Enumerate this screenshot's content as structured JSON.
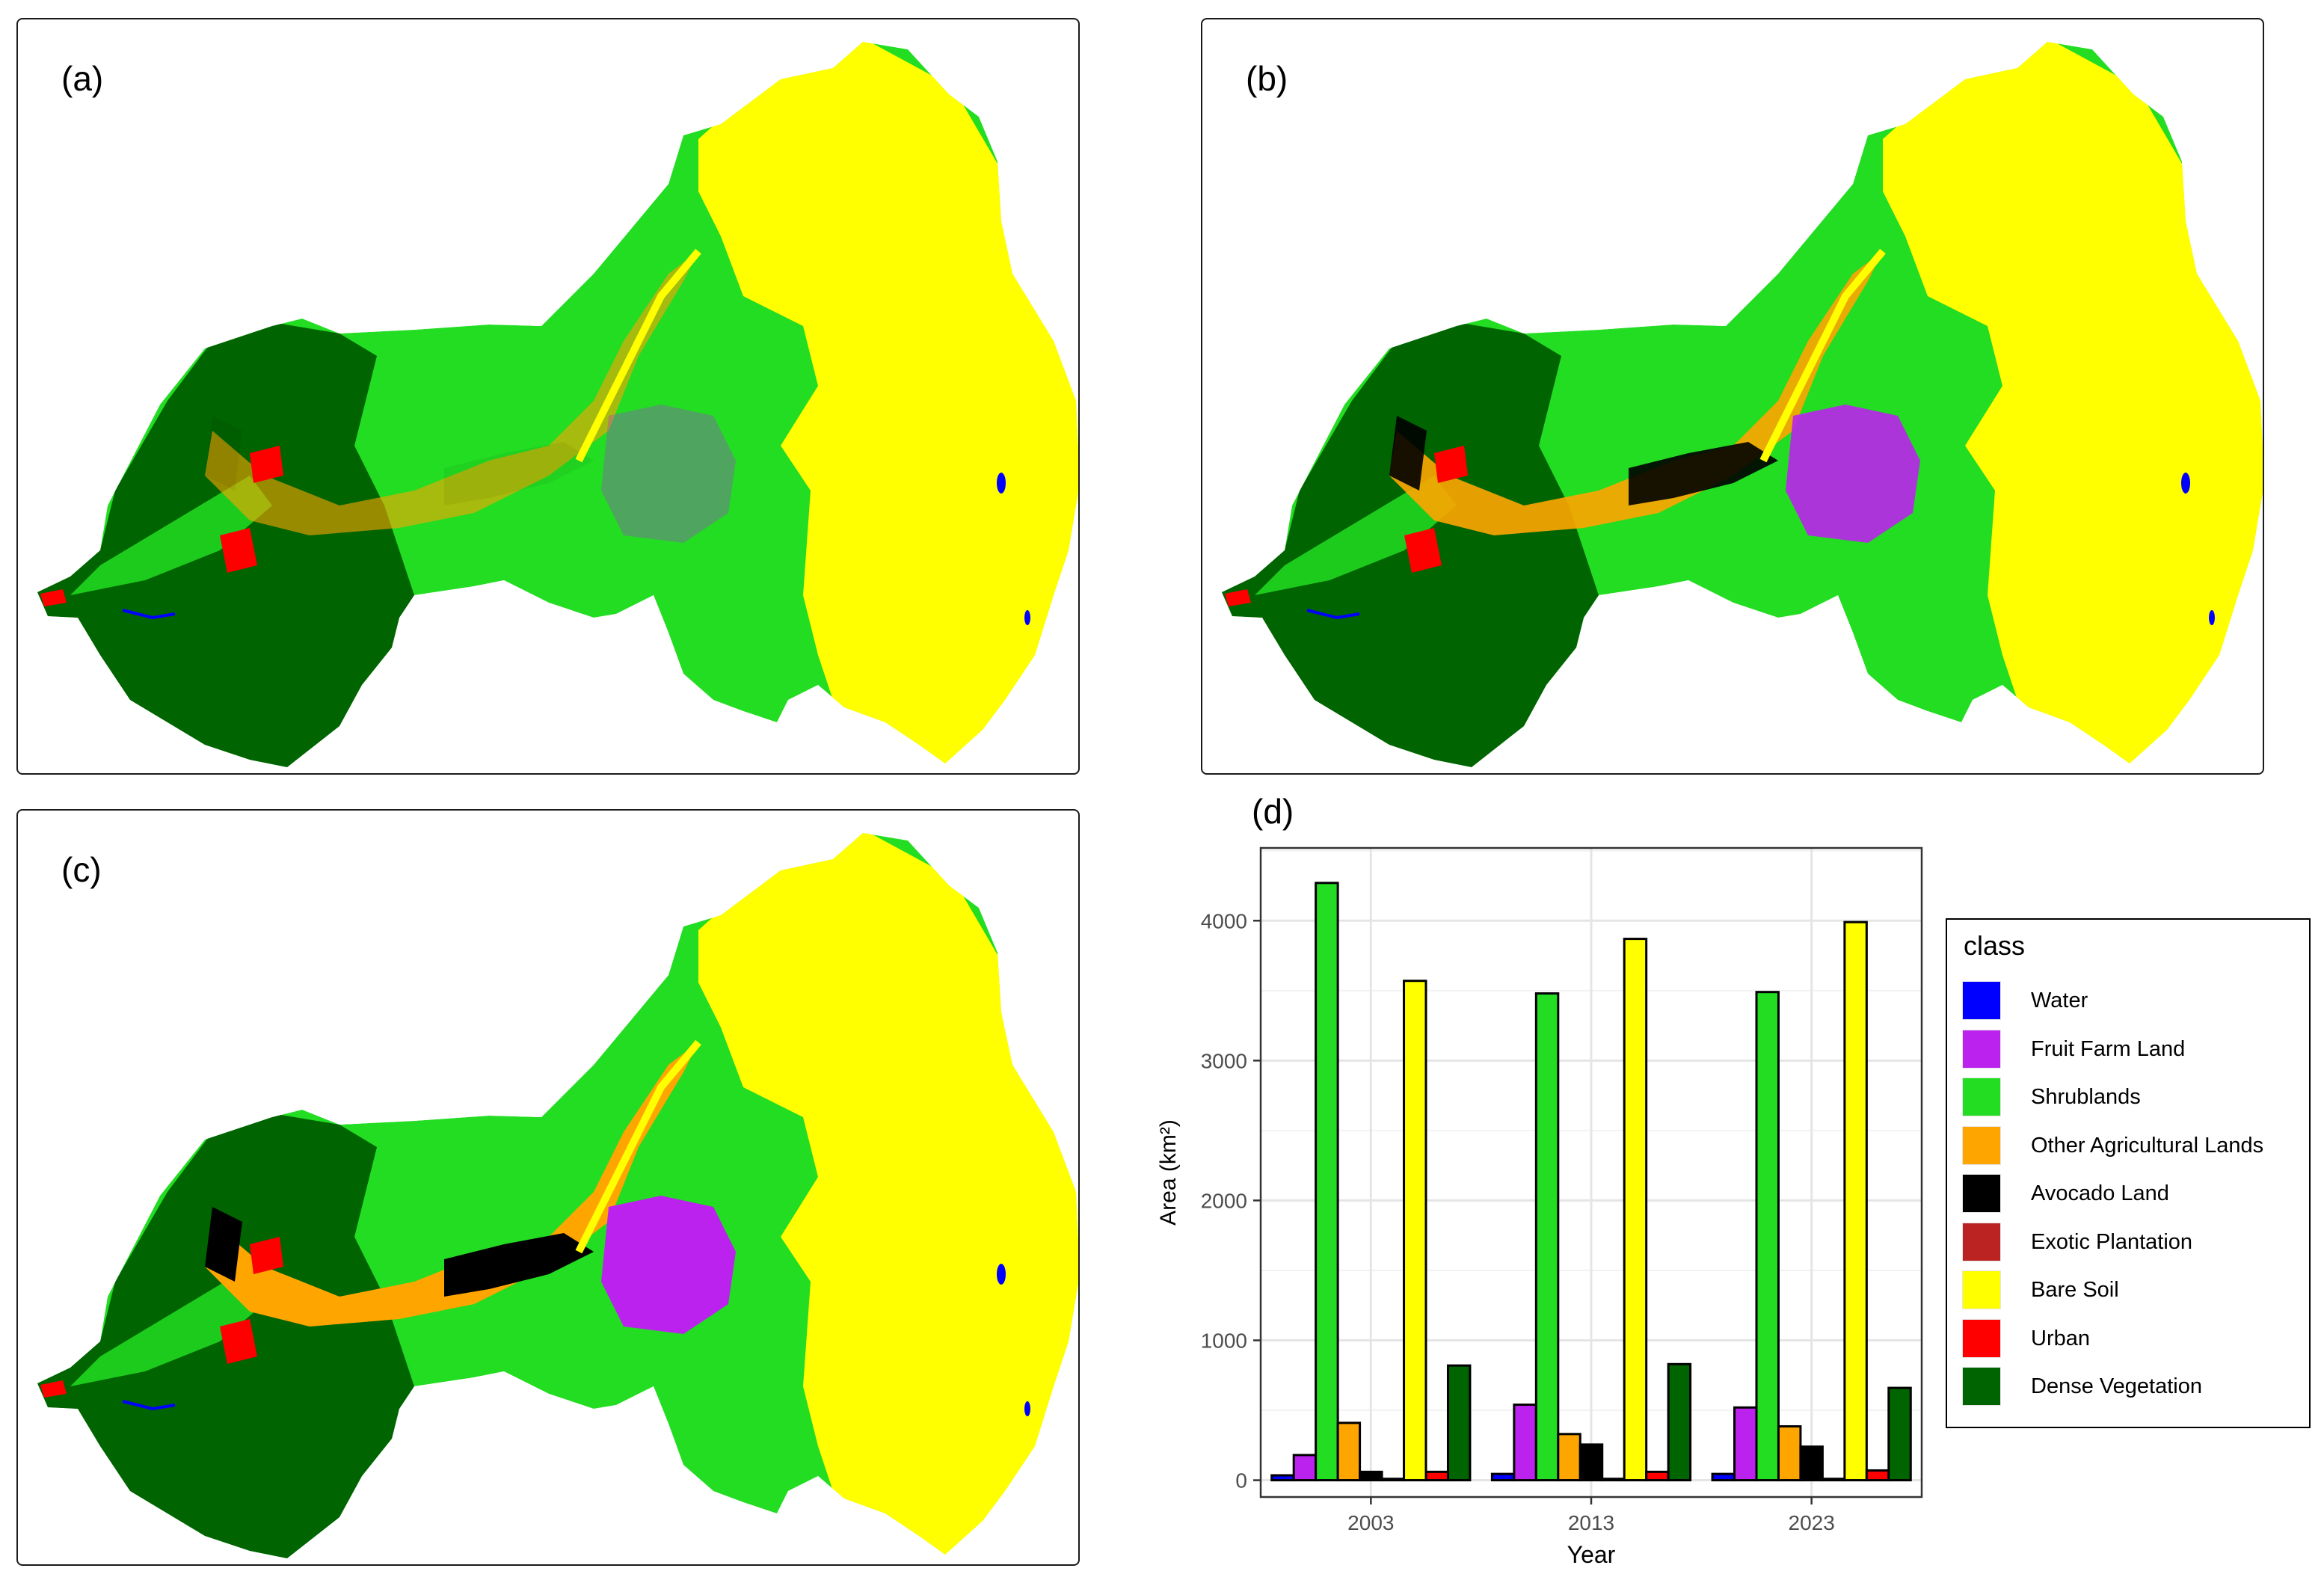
{
  "panels": {
    "a": {
      "label": "(a)"
    },
    "b": {
      "label": "(b)"
    },
    "c": {
      "label": "(c)"
    },
    "d": {
      "label": "(d)"
    }
  },
  "colors": {
    "map_background": "#ffffff",
    "panel_border": "#1a1a1a"
  },
  "chart_data": {
    "type": "bar",
    "title": "",
    "xlabel": "Year",
    "ylabel": "Area (km²)",
    "categories": [
      "2003",
      "2013",
      "2023"
    ],
    "ylim": [
      -120,
      4520
    ],
    "yticks": [
      0,
      1000,
      2000,
      3000,
      4000
    ],
    "grid": true,
    "legend": {
      "title": "class",
      "position": "right"
    },
    "series": [
      {
        "name": "Water",
        "color": "#0000ff",
        "values": [
          35,
          45,
          45
        ]
      },
      {
        "name": "Fruit Farm Land",
        "color": "#bb22ee",
        "values": [
          180,
          540,
          520
        ]
      },
      {
        "name": "Shrublands",
        "color": "#22dd22",
        "values": [
          4270,
          3480,
          3490
        ]
      },
      {
        "name": "Other Agricultural Lands",
        "color": "#ffa500",
        "values": [
          410,
          330,
          385
        ]
      },
      {
        "name": "Avocado Land",
        "color": "#000000",
        "values": [
          60,
          255,
          240
        ]
      },
      {
        "name": "Exotic Plantation",
        "color": "#bb2222",
        "values": [
          10,
          10,
          10
        ]
      },
      {
        "name": "Bare Soil",
        "color": "#ffff00",
        "values": [
          3570,
          3870,
          3990
        ]
      },
      {
        "name": "Urban",
        "color": "#ff0000",
        "values": [
          60,
          60,
          70
        ]
      },
      {
        "name": "Dense Vegetation",
        "color": "#006400",
        "values": [
          820,
          830,
          660
        ]
      }
    ]
  }
}
